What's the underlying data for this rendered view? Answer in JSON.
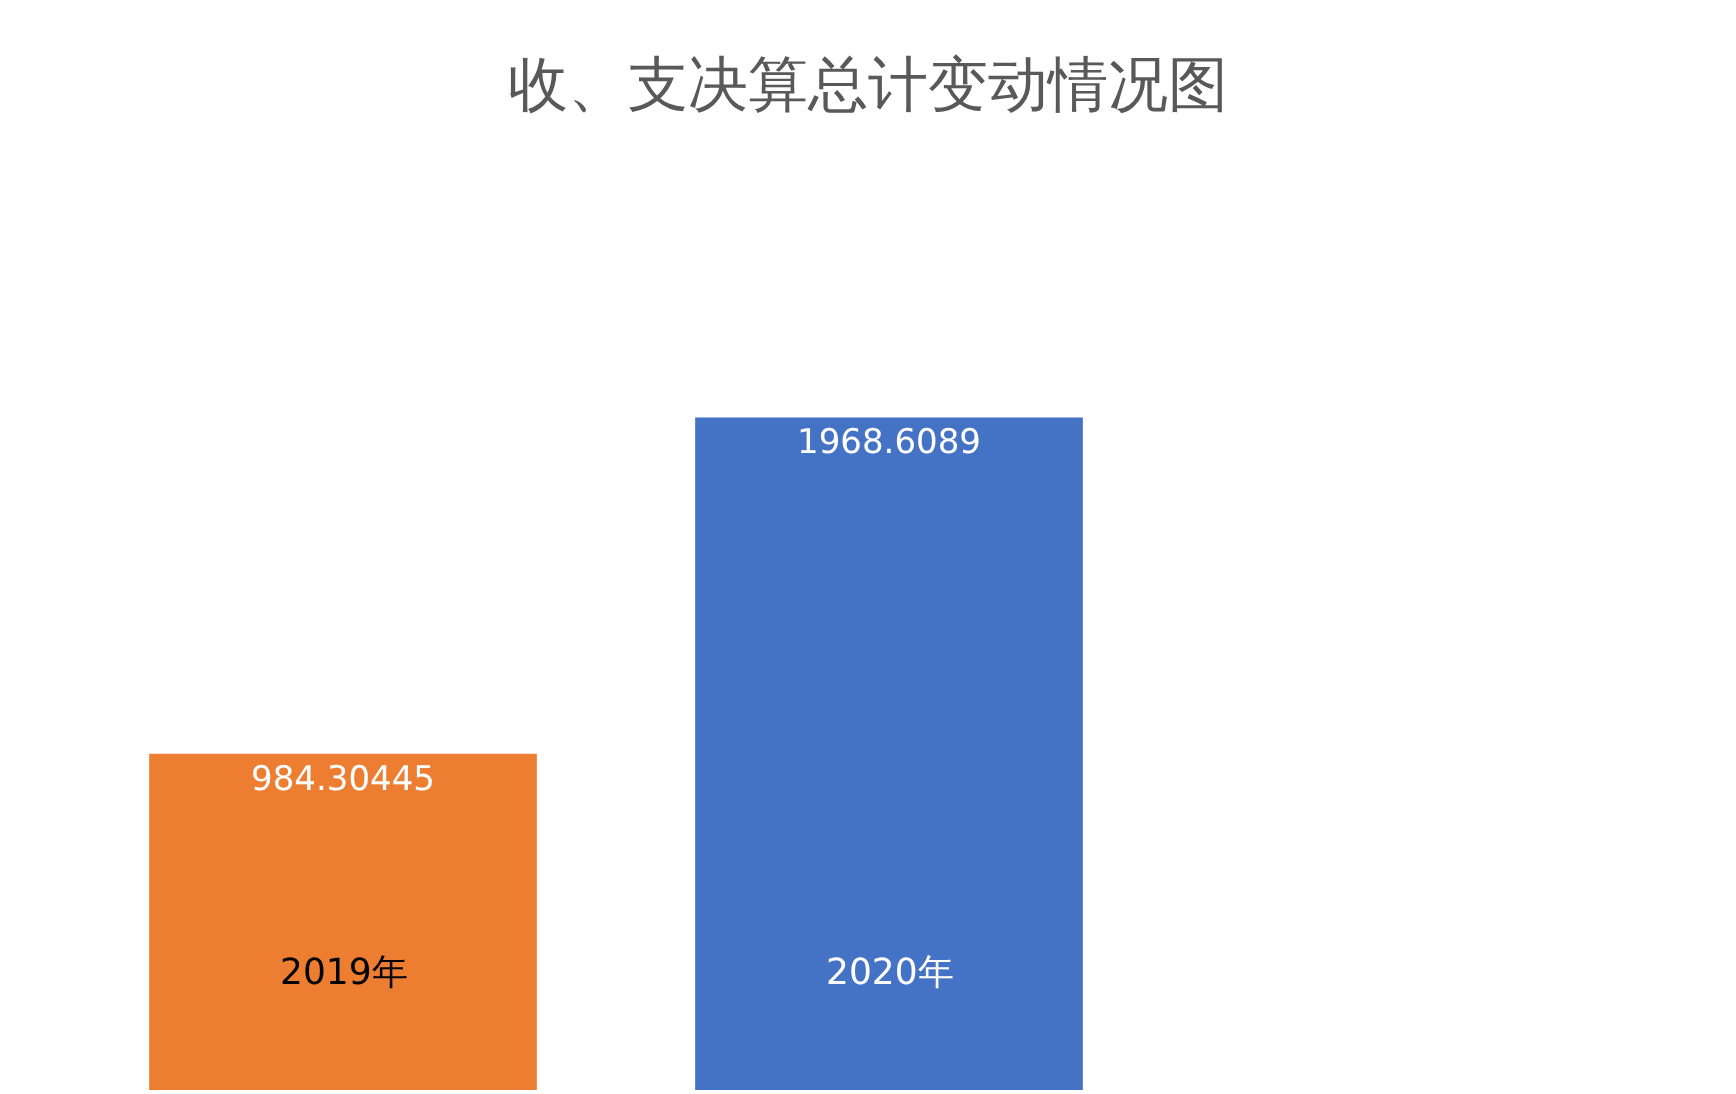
{
  "chart_data": {
    "type": "bar",
    "title": "收、支决算总计变动情况图",
    "categories": [
      "2019年",
      "2020年"
    ],
    "values": [
      984.30445,
      1968.6089
    ],
    "colors": [
      "#ed7d31",
      "#4472c4"
    ],
    "data_labels": true
  }
}
